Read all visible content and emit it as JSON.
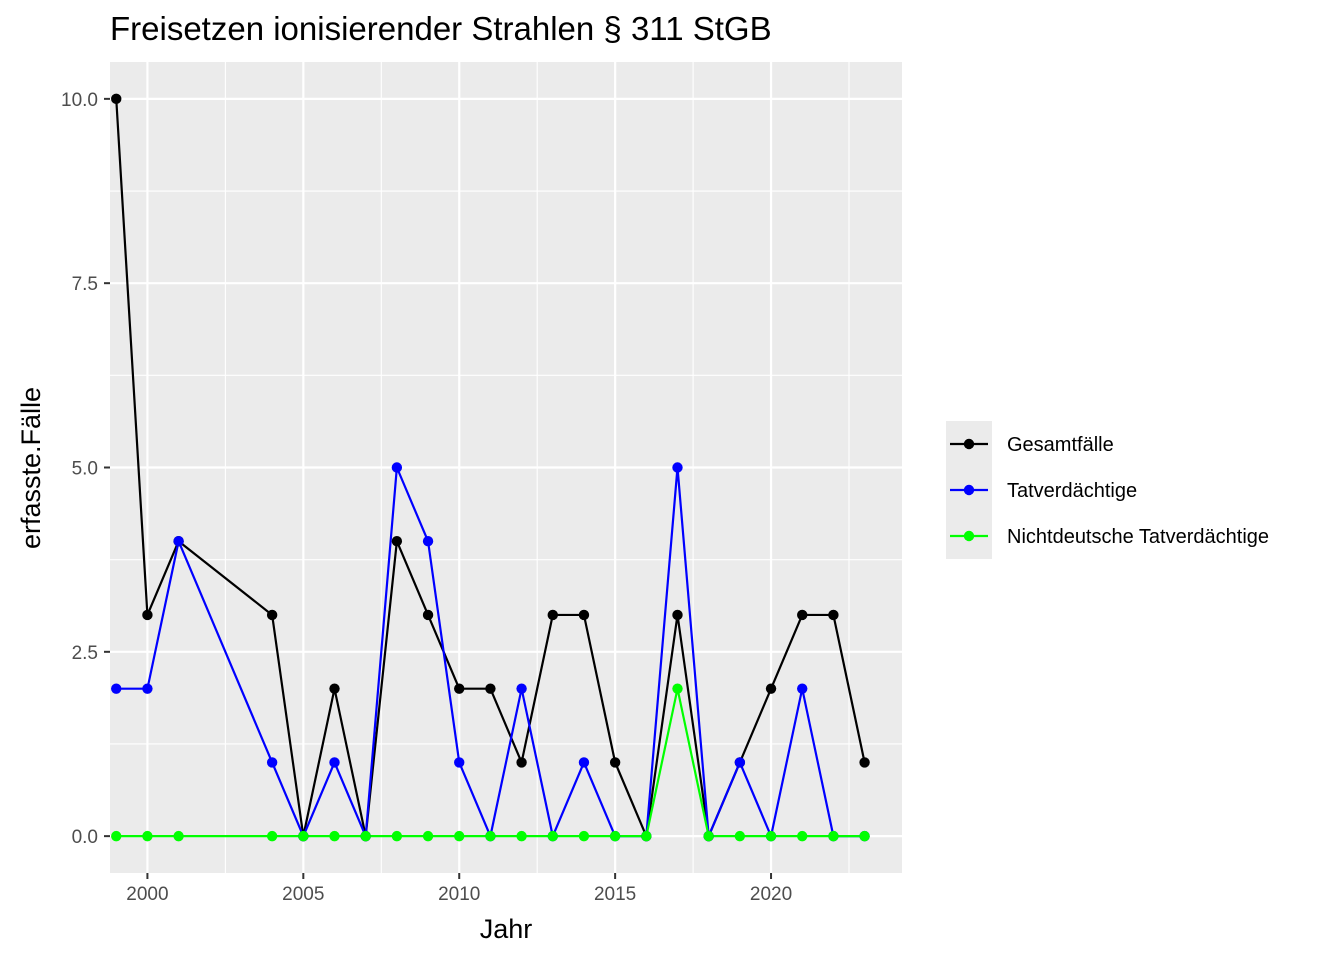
{
  "chart_data": {
    "type": "line",
    "title": "Freisetzen ionisierender Strahlen § 311 StGB",
    "xlabel": "Jahr",
    "ylabel": "erfasste.Fälle",
    "xlim": [
      1998.8,
      2024.2
    ],
    "ylim": [
      -0.5,
      10.5
    ],
    "x_ticks": [
      2000,
      2005,
      2010,
      2015,
      2020
    ],
    "y_ticks": [
      0.0,
      2.5,
      5.0,
      7.5,
      10.0
    ],
    "y_tick_labels": [
      "0.0",
      "2.5",
      "5.0",
      "7.5",
      "10.0"
    ],
    "grid": true,
    "legend_position": "right",
    "series": [
      {
        "name": "Gesamtfälle",
        "color": "#000000",
        "x": [
          1999,
          2000,
          2001,
          2004,
          2005,
          2006,
          2007,
          2008,
          2009,
          2010,
          2011,
          2012,
          2013,
          2014,
          2015,
          2016,
          2017,
          2018,
          2019,
          2020,
          2021,
          2022,
          2023
        ],
        "values": [
          10,
          3,
          4,
          3,
          0,
          2,
          0,
          4,
          3,
          2,
          2,
          1,
          3,
          3,
          1,
          0,
          3,
          0,
          1,
          2,
          3,
          3,
          1
        ]
      },
      {
        "name": "Tatverdächtige",
        "color": "#0000ff",
        "x": [
          1999,
          2000,
          2001,
          2004,
          2005,
          2006,
          2007,
          2008,
          2009,
          2010,
          2011,
          2012,
          2013,
          2014,
          2015,
          2016,
          2017,
          2018,
          2019,
          2020,
          2021,
          2022,
          2023
        ],
        "values": [
          2,
          2,
          4,
          1,
          0,
          1,
          0,
          5,
          4,
          1,
          0,
          2,
          0,
          1,
          0,
          0,
          5,
          0,
          1,
          0,
          2,
          0,
          0
        ]
      },
      {
        "name": "Nichtdeutsche Tatverdächtige",
        "color": "#00ff00",
        "x": [
          1999,
          2000,
          2001,
          2004,
          2005,
          2006,
          2007,
          2008,
          2009,
          2010,
          2011,
          2012,
          2013,
          2014,
          2015,
          2016,
          2017,
          2018,
          2019,
          2020,
          2021,
          2022,
          2023
        ],
        "values": [
          0,
          0,
          0,
          0,
          0,
          0,
          0,
          0,
          0,
          0,
          0,
          0,
          0,
          0,
          0,
          0,
          2,
          0,
          0,
          0,
          0,
          0,
          0
        ]
      }
    ]
  }
}
